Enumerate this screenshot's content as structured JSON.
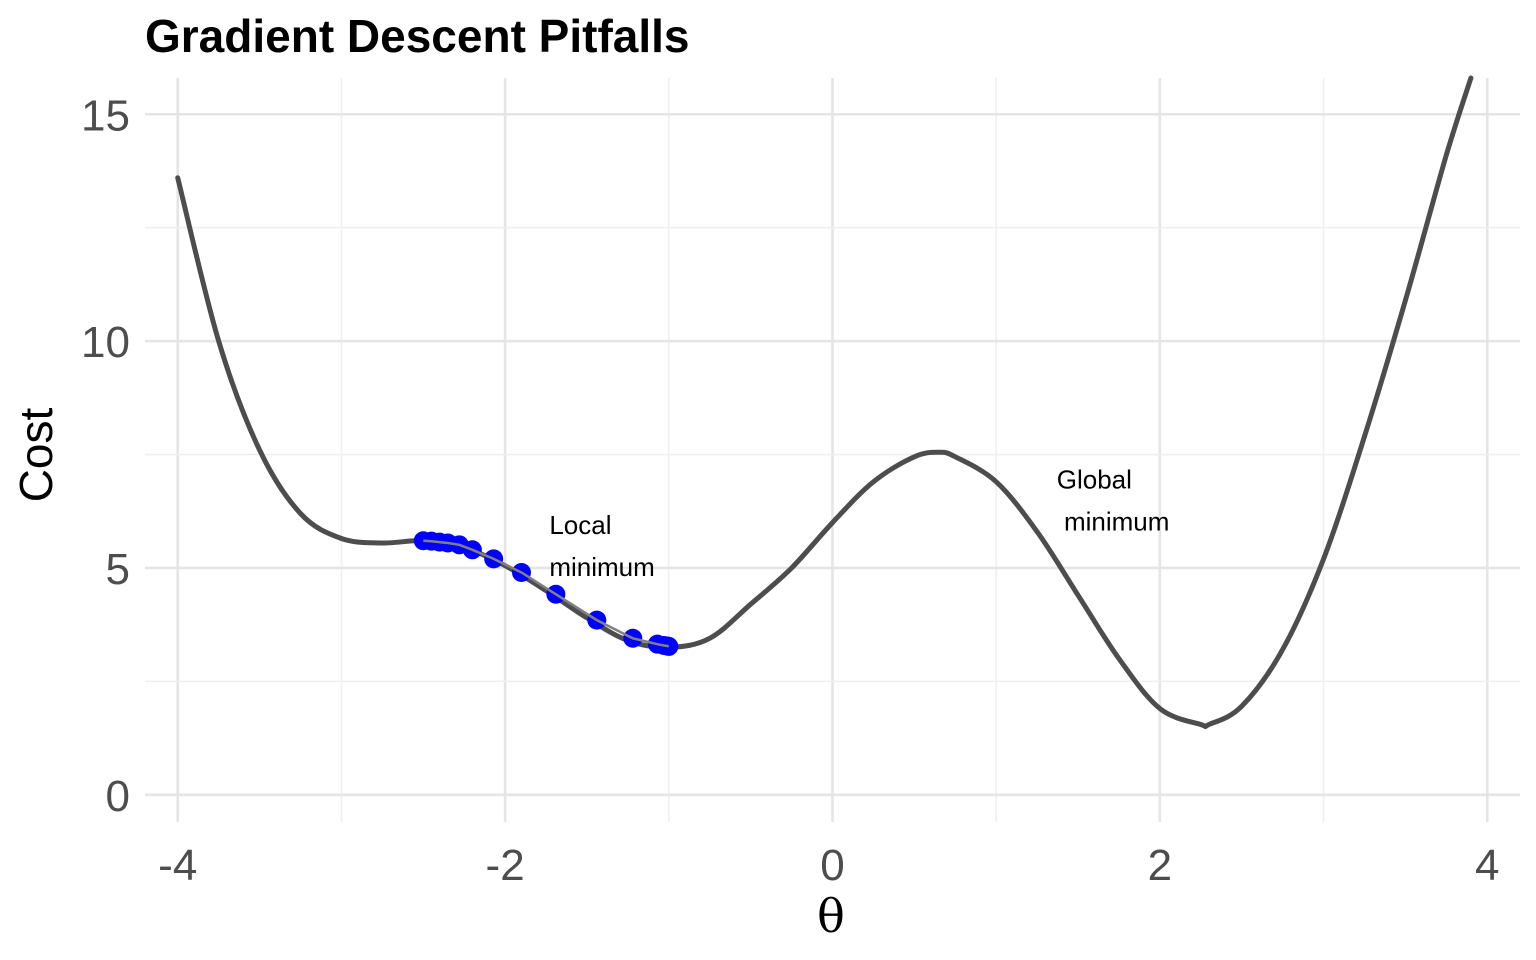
{
  "chart_data": {
    "type": "line",
    "title": "Gradient Descent Pitfalls",
    "xlabel": "θ",
    "ylabel": "Cost",
    "xlim": [
      -4.2,
      4.2
    ],
    "ylim": [
      -0.6,
      15.8
    ],
    "x_ticks": [
      -4,
      -2,
      0,
      2,
      4
    ],
    "x_tick_labels": [
      "-4",
      "-2",
      "0",
      "2",
      "4"
    ],
    "y_ticks": [
      0,
      5,
      10,
      15
    ],
    "y_tick_labels": [
      "0",
      "5",
      "10",
      "15"
    ],
    "grid": true,
    "legend": "none",
    "colors": {
      "curve": "#4d4d4d",
      "steps": "#0000ff",
      "path": "#808080"
    },
    "series": [
      {
        "type": "line",
        "x": [
          -4.0,
          -3.75,
          -3.5,
          -3.25,
          -3.0,
          -2.75,
          -2.5,
          -2.25,
          -2.0,
          -1.75,
          -1.5,
          -1.25,
          -1.0,
          -0.75,
          -0.5,
          -0.25,
          0.0,
          0.25,
          0.5,
          0.65,
          0.75,
          1.0,
          1.25,
          1.5,
          1.75,
          2.0,
          2.25,
          2.3,
          2.5,
          2.75,
          3.0,
          3.25,
          3.5,
          3.75,
          3.9
        ],
        "y": [
          13.6,
          10.0,
          7.6,
          6.2,
          5.65,
          5.55,
          5.6,
          5.45,
          5.05,
          4.5,
          3.9,
          3.4,
          3.25,
          3.45,
          4.2,
          5.0,
          6.0,
          6.9,
          7.45,
          7.55,
          7.45,
          6.9,
          5.8,
          4.4,
          3.0,
          1.9,
          1.55,
          1.55,
          1.95,
          3.2,
          5.2,
          7.9,
          10.9,
          14.1,
          15.8
        ]
      },
      {
        "type": "scatter",
        "x": [
          -2.5,
          -2.45,
          -2.4,
          -2.35,
          -2.28,
          -2.2,
          -2.07,
          -1.9,
          -1.69,
          -1.44,
          -1.22,
          -1.07,
          -1.03,
          -1.01,
          -1.0
        ],
        "y": [
          5.6,
          5.59,
          5.57,
          5.55,
          5.51,
          5.4,
          5.2,
          4.9,
          4.42,
          3.85,
          3.45,
          3.32,
          3.29,
          3.28,
          3.27
        ]
      }
    ],
    "annotations": [
      {
        "lines": [
          "Local",
          "minimum"
        ],
        "x": -1.73,
        "y": 5.75
      },
      {
        "lines": [
          "Global",
          " minimum"
        ],
        "x": 1.37,
        "y": 6.75
      }
    ]
  }
}
